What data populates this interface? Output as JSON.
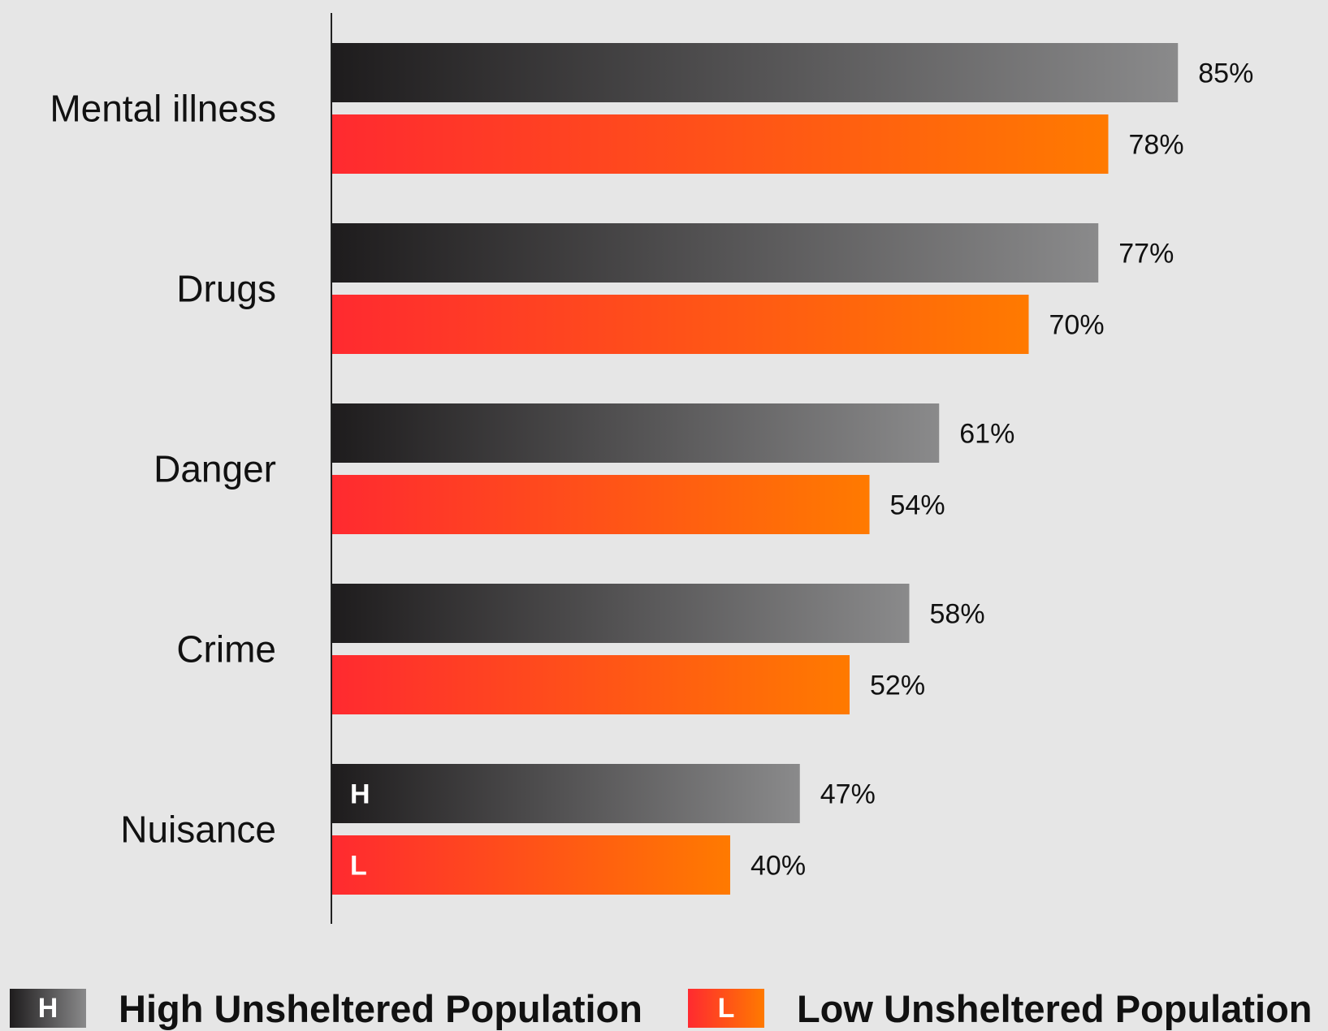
{
  "chart_data": {
    "type": "bar",
    "orientation": "horizontal",
    "categories": [
      "Mental illness",
      "Drugs",
      "Danger",
      "Crime",
      "Nuisance"
    ],
    "series": [
      {
        "name": "High Unsheltered Population",
        "tag": "H",
        "values": [
          85,
          77,
          61,
          58,
          47
        ],
        "labels": [
          "85%",
          "77%",
          "61%",
          "58%",
          "47%"
        ],
        "color_start": "#1e1c1d",
        "color_end": "#8a8a8b"
      },
      {
        "name": "Low Unsheltered Population",
        "tag": "L",
        "values": [
          78,
          70,
          54,
          52,
          40
        ],
        "labels": [
          "78%",
          "70%",
          "54%",
          "52%",
          "40%"
        ],
        "color_start": "#ff2a30",
        "color_end": "#ff7a00"
      }
    ],
    "xlim": [
      0,
      100
    ],
    "grid": false,
    "legend_position": "bottom",
    "title": "",
    "xlabel": "",
    "ylabel": ""
  }
}
